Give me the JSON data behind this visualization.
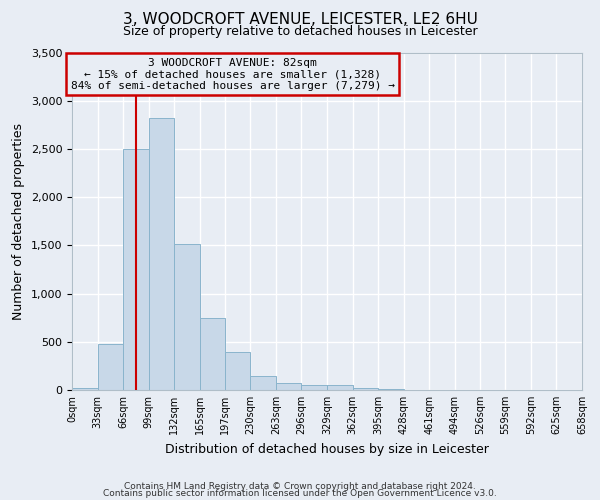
{
  "title": "3, WOODCROFT AVENUE, LEICESTER, LE2 6HU",
  "subtitle": "Size of property relative to detached houses in Leicester",
  "xlabel": "Distribution of detached houses by size in Leicester",
  "ylabel": "Number of detached properties",
  "bar_color": "#c8d8e8",
  "bar_edge_color": "#8ab4cc",
  "background_color": "#e8edf4",
  "grid_color": "#ffffff",
  "bin_edges": [
    0,
    33,
    66,
    99,
    132,
    165,
    197,
    230,
    263,
    296,
    329,
    362,
    395,
    428,
    461,
    494,
    526,
    559,
    592,
    625,
    658
  ],
  "bin_labels": [
    "0sqm",
    "33sqm",
    "66sqm",
    "99sqm",
    "132sqm",
    "165sqm",
    "197sqm",
    "230sqm",
    "263sqm",
    "296sqm",
    "329sqm",
    "362sqm",
    "395sqm",
    "428sqm",
    "461sqm",
    "494sqm",
    "526sqm",
    "559sqm",
    "592sqm",
    "625sqm",
    "658sqm"
  ],
  "counts": [
    20,
    480,
    2500,
    2820,
    1510,
    750,
    390,
    150,
    75,
    55,
    50,
    20,
    10,
    5,
    0,
    0,
    0,
    0,
    0,
    0
  ],
  "ylim": [
    0,
    3500
  ],
  "yticks": [
    0,
    500,
    1000,
    1500,
    2000,
    2500,
    3000,
    3500
  ],
  "vline_x": 82,
  "vline_color": "#cc0000",
  "annotation_lines": [
    "3 WOODCROFT AVENUE: 82sqm",
    "← 15% of detached houses are smaller (1,328)",
    "84% of semi-detached houses are larger (7,279) →"
  ],
  "annotation_box_edge_color": "#cc0000",
  "footnote1": "Contains HM Land Registry data © Crown copyright and database right 2024.",
  "footnote2": "Contains public sector information licensed under the Open Government Licence v3.0."
}
